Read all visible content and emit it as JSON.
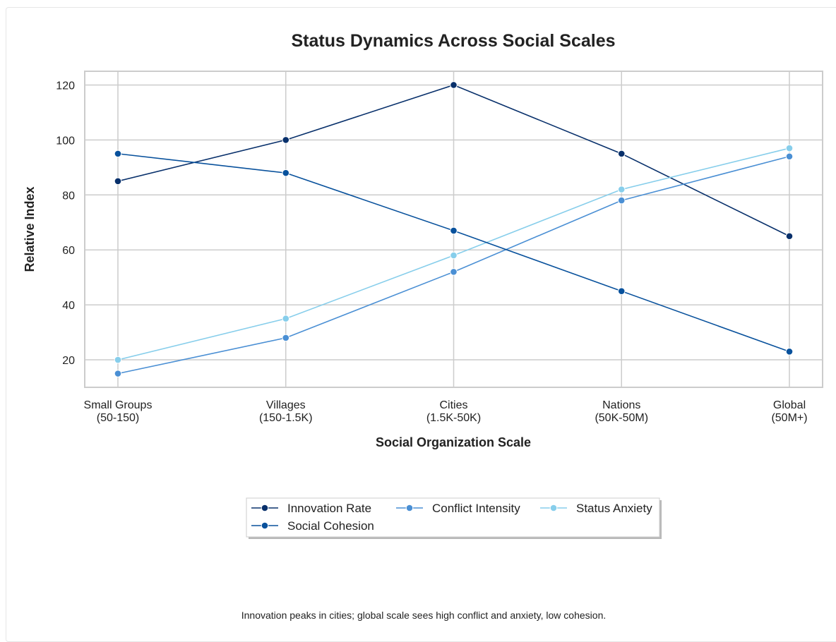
{
  "chart_data": {
    "type": "line",
    "title": "Status Dynamics Across Social Scales",
    "xlabel": "Social Organization Scale",
    "ylabel": "Relative Index",
    "categories": [
      [
        "Small Groups",
        "(50-150)"
      ],
      [
        "Villages",
        "(150-1.5K)"
      ],
      [
        "Cities",
        "(1.5K-50K)"
      ],
      [
        "Nations",
        "(50K-50M)"
      ],
      [
        "Global",
        "(50M+)"
      ]
    ],
    "ylim": [
      10,
      125
    ],
    "yticks": [
      20,
      40,
      60,
      80,
      100,
      120
    ],
    "grid": true,
    "legend": "bottom-center",
    "series": [
      {
        "name": "Innovation Rate",
        "color": "#08306b",
        "values": [
          85,
          100,
          120,
          95,
          65
        ]
      },
      {
        "name": "Conflict Intensity",
        "color": "#4a8fd4",
        "values": [
          15,
          28,
          52,
          78,
          94
        ]
      },
      {
        "name": "Status Anxiety",
        "color": "#87ceeb",
        "values": [
          20,
          35,
          58,
          82,
          97
        ]
      },
      {
        "name": "Social Cohesion",
        "color": "#08519c",
        "values": [
          95,
          88,
          67,
          45,
          23
        ]
      }
    ],
    "annotation": "Innovation peaks in cities; global scale sees high conflict and anxiety, low cohesion."
  }
}
